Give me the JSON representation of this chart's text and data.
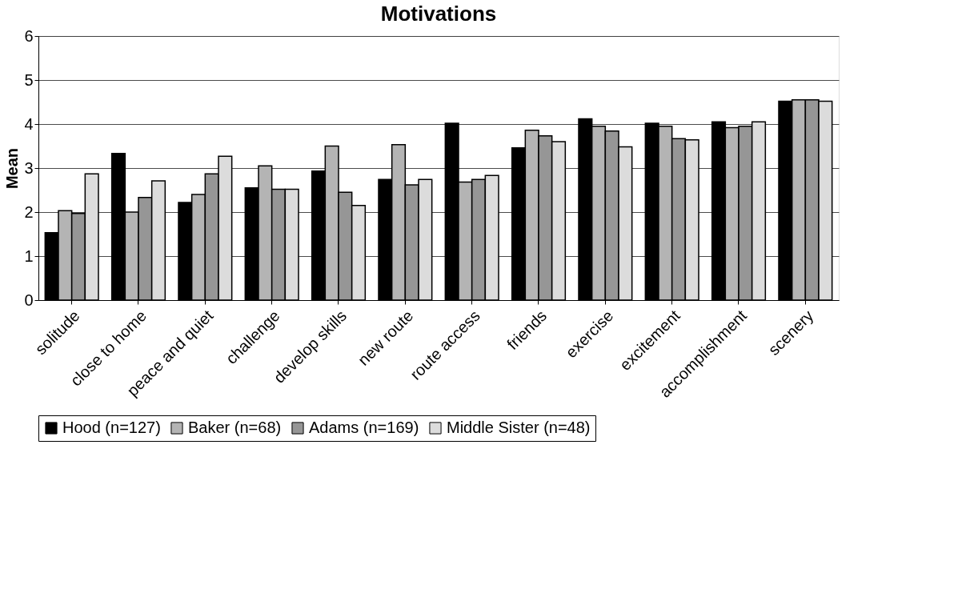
{
  "chart_data": {
    "type": "bar",
    "title": "Motivations",
    "ylabel": "Mean",
    "categories": [
      "solitude",
      "close to home",
      "peace and quiet",
      "challenge",
      "develop skills",
      "new route",
      "route access",
      "friends",
      "exercise",
      "excitement",
      "accomplishment",
      "scenery"
    ],
    "series": [
      {
        "name": "Hood (n=127)",
        "color": "#000000",
        "values": [
          1.53,
          3.33,
          2.22,
          2.55,
          2.93,
          2.74,
          4.02,
          3.46,
          4.12,
          4.02,
          4.05,
          4.52
        ]
      },
      {
        "name": "Baker (n=68)",
        "color": "#b4b4b4",
        "values": [
          2.03,
          2.0,
          2.4,
          3.05,
          3.5,
          3.53,
          2.68,
          3.86,
          3.95,
          3.95,
          3.92,
          4.55
        ]
      },
      {
        "name": "Adams (n=169)",
        "color": "#969696",
        "values": [
          1.97,
          2.33,
          2.87,
          2.52,
          2.45,
          2.62,
          2.74,
          3.73,
          3.84,
          3.67,
          3.95,
          4.55
        ]
      },
      {
        "name": "Middle Sister (n=48)",
        "color": "#dcdcdc",
        "values": [
          2.87,
          2.71,
          3.27,
          2.52,
          2.15,
          2.74,
          2.83,
          3.6,
          3.48,
          3.64,
          4.05,
          4.52
        ]
      }
    ],
    "ylim": [
      0,
      6
    ],
    "yticks": [
      0,
      1,
      2,
      3,
      4,
      5,
      6
    ],
    "grid": "y",
    "legend": "bottom"
  }
}
